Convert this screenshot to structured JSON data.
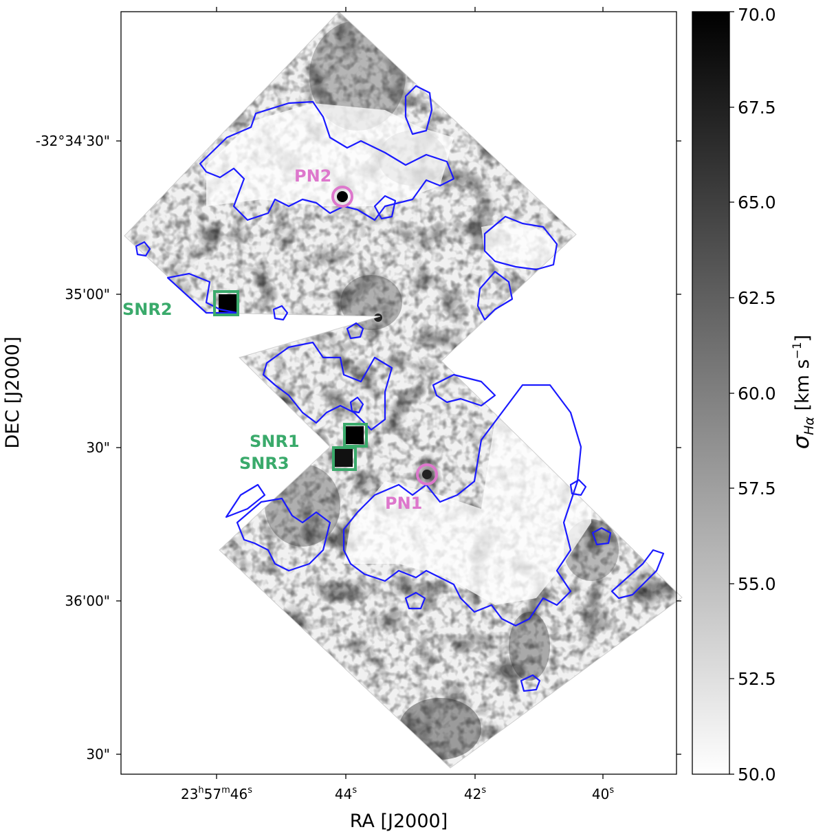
{
  "chart_data": {
    "type": "heatmap",
    "title": "",
    "xlabel": "RA [J2000]",
    "ylabel": "DEC [J2000]",
    "colorbar_label": "σHα [km s−1]",
    "colormap": "gray_r",
    "colors": {
      "contour": "#1a1aff",
      "snr": "#3aaa6b",
      "pn": "#dd77cc"
    },
    "clim": [
      50.0,
      70.0
    ],
    "colorbar_ticks": [
      "50.0",
      "52.5",
      "55.0",
      "57.5",
      "60.0",
      "62.5",
      "65.0",
      "67.5",
      "70.0"
    ],
    "x_ticks": [
      {
        "h": "23",
        "m": "57",
        "s": "46"
      },
      {
        "s": "44"
      },
      {
        "s": "42"
      },
      {
        "s": "40"
      }
    ],
    "y_ticks": [
      {
        "label": "-32°34'30\""
      },
      {
        "label": "35'00\""
      },
      {
        "label": "30\""
      },
      {
        "label": "36'00\""
      },
      {
        "label": "30\""
      }
    ],
    "snr_markers": [
      {
        "name": "SNR2"
      },
      {
        "name": "SNR1"
      },
      {
        "name": "SNR3"
      }
    ],
    "pn_markers": [
      {
        "name": "PN2"
      },
      {
        "name": "PN1"
      }
    ]
  }
}
